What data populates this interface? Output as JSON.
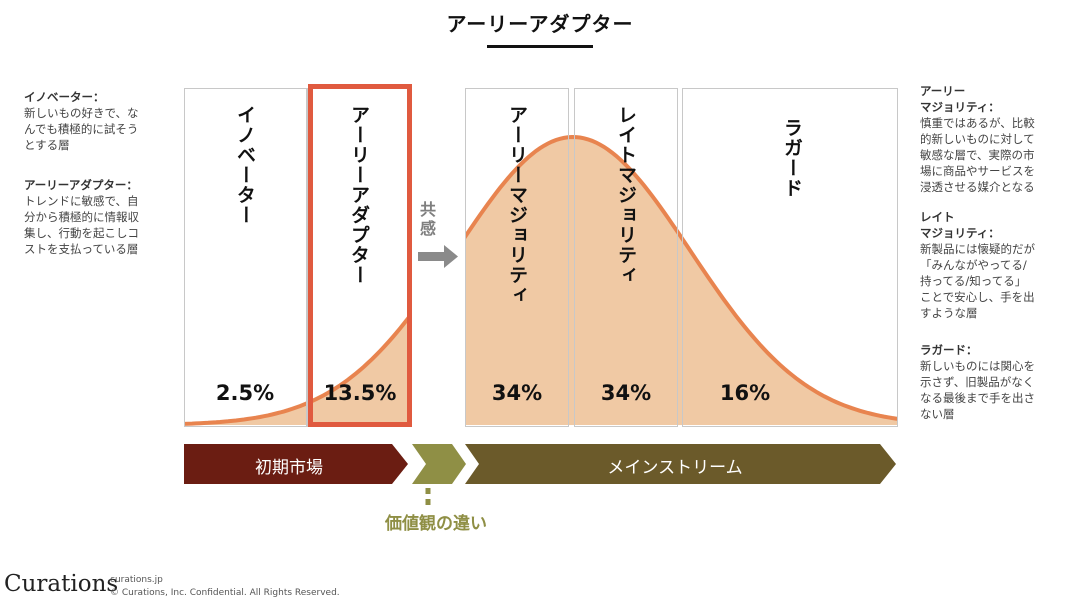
{
  "title": "アーリーアダプター",
  "left_notes": [
    {
      "title": "イノベーター：",
      "body": [
        "新しいもの好きで、な",
        "んでも積極的に試そう",
        "とする層"
      ]
    },
    {
      "title": "アーリーアダプター：",
      "body": [
        "トレンドに敏感で、自",
        "分から積極的に情報収",
        "集し、行動を起こしコ",
        "ストを支払っている層"
      ]
    }
  ],
  "right_notes": [
    {
      "title": [
        "アーリー",
        "マジョリティ："
      ],
      "body": [
        "慎重ではあるが、比較",
        "的新しいものに対して",
        "敏感な層で、実際の市",
        "場に商品やサービスを",
        "浸透させる媒介となる"
      ]
    },
    {
      "title": [
        "レイト",
        "マジョリティ："
      ],
      "body": [
        "新製品には懐疑的だが",
        "「みんながやってる/",
        "持ってる/知ってる」",
        "ことで安心し、手を出",
        "すような層"
      ]
    },
    {
      "title": [
        "ラガード："
      ],
      "body": [
        "新しいものには関心を",
        "示さず、旧製品がなく",
        "なる最後まで手を出さ",
        "ない層"
      ]
    }
  ],
  "segments": [
    {
      "label": "イノベーター",
      "percent": "2.5%"
    },
    {
      "label": "アーリーアダプター",
      "percent": "13.5%"
    },
    {
      "label": "アーリーマジョリティ",
      "percent": "34%"
    },
    {
      "label": "レイトマジョリティ",
      "percent": "34%"
    },
    {
      "label": "ラガード",
      "percent": "16%"
    }
  ],
  "kyokan_label": "共感",
  "bands": {
    "early": "初期市場",
    "main": "メインストリーム"
  },
  "gap_label": "価値観の違い",
  "footer": {
    "logo": "Curations",
    "site": "curations.jp",
    "copyright": "© Curations, Inc. Confidential. All Rights Reserved."
  },
  "colors": {
    "curve": "#e8844f",
    "fill": "#f0c9a4",
    "highlight": "#e05a3f",
    "band_early": "#6b1d12",
    "band_gap": "#8f8f45",
    "band_main": "#6b5a2a",
    "arrow": "#8a8a8a"
  }
}
